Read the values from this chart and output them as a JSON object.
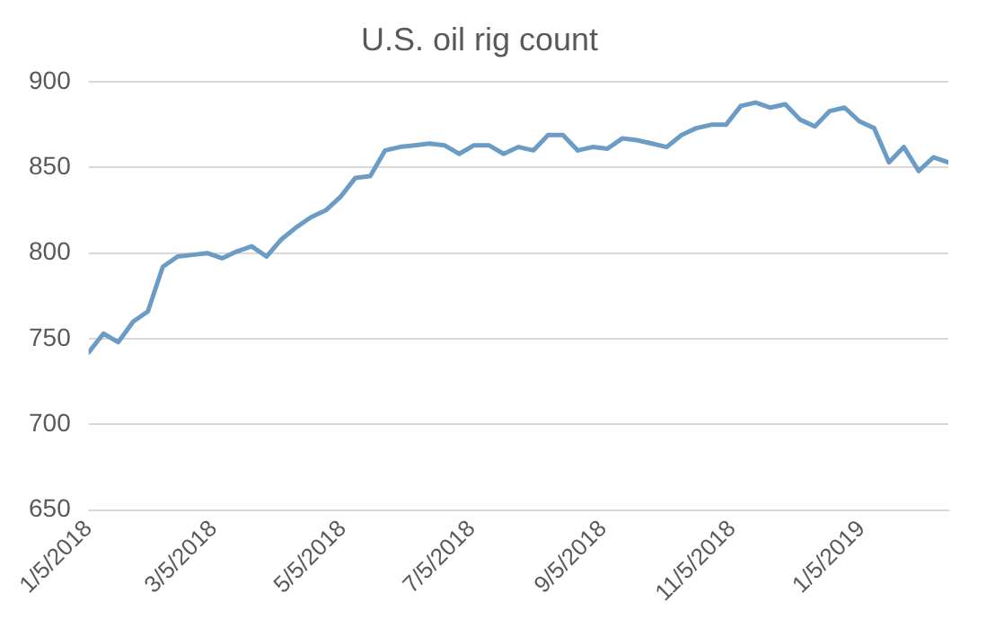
{
  "chart_data": {
    "type": "line",
    "title": "U.S. oil rig count",
    "x": [
      "2018-01-05",
      "2018-01-12",
      "2018-01-19",
      "2018-01-26",
      "2018-02-02",
      "2018-02-09",
      "2018-02-16",
      "2018-02-23",
      "2018-03-02",
      "2018-03-09",
      "2018-03-16",
      "2018-03-23",
      "2018-03-30",
      "2018-04-06",
      "2018-04-13",
      "2018-04-20",
      "2018-04-27",
      "2018-05-04",
      "2018-05-11",
      "2018-05-18",
      "2018-05-25",
      "2018-06-01",
      "2018-06-08",
      "2018-06-15",
      "2018-06-22",
      "2018-06-29",
      "2018-07-06",
      "2018-07-13",
      "2018-07-20",
      "2018-07-27",
      "2018-08-03",
      "2018-08-10",
      "2018-08-17",
      "2018-08-24",
      "2018-08-31",
      "2018-09-07",
      "2018-09-14",
      "2018-09-21",
      "2018-09-28",
      "2018-10-05",
      "2018-10-12",
      "2018-10-19",
      "2018-10-26",
      "2018-11-02",
      "2018-11-09",
      "2018-11-16",
      "2018-11-23",
      "2018-11-30",
      "2018-12-07",
      "2018-12-14",
      "2018-12-21",
      "2018-12-28",
      "2019-01-04",
      "2019-01-11",
      "2019-01-18",
      "2019-01-25",
      "2019-02-01",
      "2019-02-08",
      "2019-02-15"
    ],
    "series": [
      {
        "color": "#6a9cc6",
        "values": [
          742,
          753,
          748,
          760,
          766,
          792,
          798,
          799,
          800,
          797,
          801,
          804,
          798,
          808,
          815,
          821,
          825,
          833,
          844,
          845,
          860,
          862,
          863,
          864,
          863,
          858,
          863,
          863,
          858,
          862,
          860,
          869,
          869,
          860,
          862,
          861,
          867,
          866,
          864,
          862,
          869,
          873,
          875,
          875,
          886,
          888,
          885,
          887,
          878,
          874,
          883,
          885,
          877,
          873,
          853,
          862,
          848,
          856,
          853
        ]
      }
    ],
    "xlim": [
      "2018-01-05",
      "2019-02-15"
    ],
    "xticks": [
      {
        "value": "2018-01-05",
        "label": "1/5/2018"
      },
      {
        "value": "2018-03-05",
        "label": "3/5/2018"
      },
      {
        "value": "2018-05-05",
        "label": "5/5/2018"
      },
      {
        "value": "2018-07-05",
        "label": "7/5/2018"
      },
      {
        "value": "2018-09-05",
        "label": "9/5/2018"
      },
      {
        "value": "2018-11-05",
        "label": "11/5/2018"
      },
      {
        "value": "2019-01-05",
        "label": "1/5/2019"
      }
    ],
    "ylim": [
      650,
      900
    ],
    "yticks": [
      650,
      700,
      750,
      800,
      850,
      900
    ],
    "grid": "y",
    "legend": false,
    "marker": "none",
    "line_style": "solid"
  }
}
